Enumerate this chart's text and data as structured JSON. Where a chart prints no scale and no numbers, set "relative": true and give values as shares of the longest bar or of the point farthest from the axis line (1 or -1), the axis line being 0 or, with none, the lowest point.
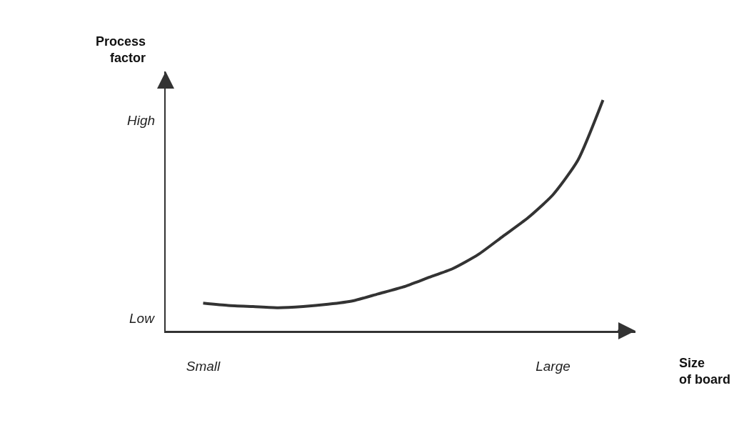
{
  "chart_data": {
    "type": "line",
    "ylabel": "Process factor",
    "xlabel": "Size of board",
    "relative": true,
    "categories": [
      "Small",
      null,
      null,
      null,
      null,
      null,
      null,
      null,
      null,
      null,
      null,
      null,
      null,
      null,
      "Large",
      null,
      null
    ],
    "series": [
      {
        "color": "#333333",
        "values": [
          0.12,
          0.11,
          0.105,
          0.1,
          0.105,
          0.115,
          0.13,
          0.16,
          0.19,
          0.23,
          0.27,
          0.33,
          0.41,
          0.49,
          0.59,
          0.74,
          1
        ]
      }
    ],
    "annotations": [
      "Low",
      "High"
    ],
    "grid": false,
    "marker": "none",
    "line_style": "solid"
  }
}
